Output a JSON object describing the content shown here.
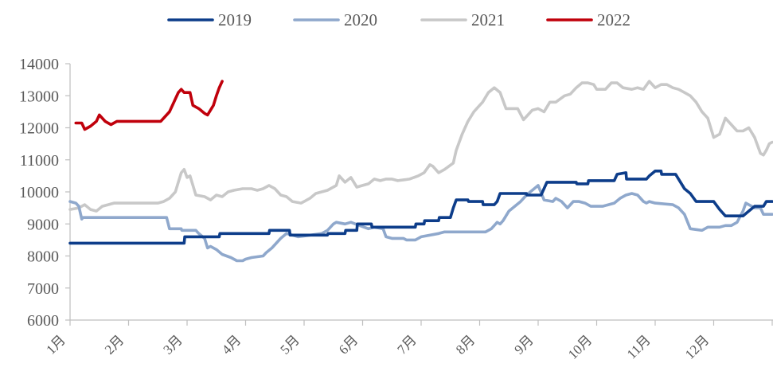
{
  "chart_data": {
    "type": "line",
    "title": "",
    "xlabel": "",
    "ylabel": "",
    "ylim": [
      6000,
      14000
    ],
    "yticks": [
      6000,
      7000,
      8000,
      9000,
      10000,
      11000,
      12000,
      13000,
      14000
    ],
    "xlim": [
      0,
      12
    ],
    "x_tick_labels": [
      "1月",
      "2月",
      "3月",
      "4月",
      "5月",
      "6月",
      "7月",
      "8月",
      "9月",
      "10月",
      "11月",
      "12月"
    ],
    "grid": false,
    "legend_position": "top-center",
    "series": [
      {
        "name": "2019",
        "color": "#0d3d8a",
        "points": [
          [
            0,
            8400
          ],
          [
            1.95,
            8400
          ],
          [
            1.96,
            8600
          ],
          [
            2.55,
            8600
          ],
          [
            2.56,
            8700
          ],
          [
            3.4,
            8700
          ],
          [
            3.41,
            8800
          ],
          [
            3.75,
            8800
          ],
          [
            3.76,
            8650
          ],
          [
            4.4,
            8650
          ],
          [
            4.41,
            8700
          ],
          [
            4.7,
            8700
          ],
          [
            4.71,
            8800
          ],
          [
            4.9,
            8800
          ],
          [
            4.91,
            9000
          ],
          [
            5.15,
            9000
          ],
          [
            5.16,
            8900
          ],
          [
            5.9,
            8900
          ],
          [
            5.91,
            9000
          ],
          [
            6.05,
            9000
          ],
          [
            6.06,
            9100
          ],
          [
            6.3,
            9100
          ],
          [
            6.31,
            9200
          ],
          [
            6.5,
            9200
          ],
          [
            6.55,
            9500
          ],
          [
            6.6,
            9750
          ],
          [
            6.8,
            9750
          ],
          [
            6.81,
            9700
          ],
          [
            7.05,
            9700
          ],
          [
            7.06,
            9600
          ],
          [
            7.25,
            9600
          ],
          [
            7.3,
            9700
          ],
          [
            7.35,
            9950
          ],
          [
            7.8,
            9950
          ],
          [
            7.81,
            9900
          ],
          [
            8.05,
            9900
          ],
          [
            8.15,
            10300
          ],
          [
            8.65,
            10300
          ],
          [
            8.66,
            10250
          ],
          [
            8.85,
            10250
          ],
          [
            8.86,
            10350
          ],
          [
            9.3,
            10350
          ],
          [
            9.35,
            10550
          ],
          [
            9.5,
            10600
          ],
          [
            9.51,
            10400
          ],
          [
            9.85,
            10400
          ],
          [
            9.9,
            10500
          ],
          [
            10.0,
            10650
          ],
          [
            10.1,
            10650
          ],
          [
            10.11,
            10550
          ],
          [
            10.35,
            10550
          ],
          [
            10.5,
            10100
          ],
          [
            10.6,
            9950
          ],
          [
            10.7,
            9700
          ],
          [
            11.0,
            9700
          ],
          [
            11.1,
            9450
          ],
          [
            11.2,
            9250
          ],
          [
            11.5,
            9250
          ],
          [
            11.6,
            9400
          ],
          [
            11.7,
            9550
          ],
          [
            11.85,
            9550
          ],
          [
            11.9,
            9700
          ],
          [
            12,
            9700
          ]
        ]
      },
      {
        "name": "2020",
        "color": "#8fa8cc",
        "points": [
          [
            0,
            9700
          ],
          [
            0.1,
            9650
          ],
          [
            0.15,
            9550
          ],
          [
            0.2,
            9150
          ],
          [
            0.22,
            9200
          ],
          [
            1.65,
            9200
          ],
          [
            1.7,
            8850
          ],
          [
            1.9,
            8850
          ],
          [
            1.91,
            8800
          ],
          [
            2.15,
            8800
          ],
          [
            2.2,
            8700
          ],
          [
            2.3,
            8550
          ],
          [
            2.35,
            8250
          ],
          [
            2.4,
            8300
          ],
          [
            2.5,
            8200
          ],
          [
            2.6,
            8050
          ],
          [
            2.75,
            7950
          ],
          [
            2.85,
            7850
          ],
          [
            2.95,
            7850
          ],
          [
            3.0,
            7900
          ],
          [
            3.1,
            7950
          ],
          [
            3.3,
            8000
          ],
          [
            3.35,
            8100
          ],
          [
            3.45,
            8250
          ],
          [
            3.6,
            8550
          ],
          [
            3.7,
            8700
          ],
          [
            3.8,
            8650
          ],
          [
            3.9,
            8600
          ],
          [
            4.3,
            8700
          ],
          [
            4.4,
            8800
          ],
          [
            4.5,
            9000
          ],
          [
            4.55,
            9050
          ],
          [
            4.7,
            9000
          ],
          [
            4.8,
            9050
          ],
          [
            4.95,
            8950
          ],
          [
            5.1,
            8850
          ],
          [
            5.2,
            8900
          ],
          [
            5.35,
            8850
          ],
          [
            5.4,
            8600
          ],
          [
            5.5,
            8550
          ],
          [
            5.7,
            8550
          ],
          [
            5.75,
            8500
          ],
          [
            5.9,
            8500
          ],
          [
            6.0,
            8600
          ],
          [
            6.3,
            8700
          ],
          [
            6.4,
            8750
          ],
          [
            7.1,
            8750
          ],
          [
            7.2,
            8850
          ],
          [
            7.3,
            9050
          ],
          [
            7.35,
            9000
          ],
          [
            7.4,
            9100
          ],
          [
            7.5,
            9400
          ],
          [
            7.7,
            9700
          ],
          [
            7.8,
            9900
          ],
          [
            8.0,
            10200
          ],
          [
            8.1,
            9750
          ],
          [
            8.25,
            9700
          ],
          [
            8.3,
            9800
          ],
          [
            8.4,
            9700
          ],
          [
            8.5,
            9500
          ],
          [
            8.6,
            9700
          ],
          [
            8.7,
            9700
          ],
          [
            8.8,
            9650
          ],
          [
            8.9,
            9550
          ],
          [
            9.1,
            9550
          ],
          [
            9.3,
            9650
          ],
          [
            9.4,
            9800
          ],
          [
            9.5,
            9900
          ],
          [
            9.6,
            9950
          ],
          [
            9.7,
            9900
          ],
          [
            9.8,
            9700
          ],
          [
            9.85,
            9650
          ],
          [
            9.9,
            9700
          ],
          [
            10.0,
            9650
          ],
          [
            10.3,
            9600
          ],
          [
            10.4,
            9500
          ],
          [
            10.5,
            9300
          ],
          [
            10.6,
            8850
          ],
          [
            10.8,
            8800
          ],
          [
            10.9,
            8900
          ],
          [
            11.1,
            8900
          ],
          [
            11.2,
            8950
          ],
          [
            11.3,
            8950
          ],
          [
            11.4,
            9050
          ],
          [
            11.5,
            9400
          ],
          [
            11.55,
            9650
          ],
          [
            11.65,
            9550
          ],
          [
            11.7,
            9500
          ],
          [
            11.8,
            9500
          ],
          [
            11.85,
            9300
          ],
          [
            12,
            9300
          ]
        ]
      },
      {
        "name": "2021",
        "color": "#c8c8c8",
        "points": [
          [
            0,
            9450
          ],
          [
            0.15,
            9500
          ],
          [
            0.25,
            9600
          ],
          [
            0.35,
            9450
          ],
          [
            0.45,
            9400
          ],
          [
            0.55,
            9550
          ],
          [
            0.65,
            9600
          ],
          [
            0.75,
            9650
          ],
          [
            1.0,
            9650
          ],
          [
            1.3,
            9650
          ],
          [
            1.5,
            9650
          ],
          [
            1.6,
            9700
          ],
          [
            1.7,
            9800
          ],
          [
            1.8,
            10000
          ],
          [
            1.85,
            10300
          ],
          [
            1.9,
            10600
          ],
          [
            1.95,
            10700
          ],
          [
            2.0,
            10450
          ],
          [
            2.05,
            10500
          ],
          [
            2.15,
            9900
          ],
          [
            2.3,
            9850
          ],
          [
            2.4,
            9750
          ],
          [
            2.5,
            9900
          ],
          [
            2.6,
            9850
          ],
          [
            2.7,
            10000
          ],
          [
            2.8,
            10050
          ],
          [
            2.95,
            10100
          ],
          [
            3.1,
            10100
          ],
          [
            3.2,
            10050
          ],
          [
            3.3,
            10100
          ],
          [
            3.4,
            10200
          ],
          [
            3.5,
            10100
          ],
          [
            3.6,
            9900
          ],
          [
            3.7,
            9850
          ],
          [
            3.8,
            9700
          ],
          [
            3.95,
            9650
          ],
          [
            4.1,
            9800
          ],
          [
            4.2,
            9950
          ],
          [
            4.4,
            10050
          ],
          [
            4.55,
            10200
          ],
          [
            4.6,
            10500
          ],
          [
            4.7,
            10300
          ],
          [
            4.8,
            10450
          ],
          [
            4.9,
            10150
          ],
          [
            5.0,
            10200
          ],
          [
            5.1,
            10250
          ],
          [
            5.2,
            10400
          ],
          [
            5.3,
            10350
          ],
          [
            5.4,
            10400
          ],
          [
            5.5,
            10400
          ],
          [
            5.6,
            10350
          ],
          [
            5.8,
            10400
          ],
          [
            5.95,
            10500
          ],
          [
            6.05,
            10600
          ],
          [
            6.15,
            10850
          ],
          [
            6.2,
            10800
          ],
          [
            6.3,
            10600
          ],
          [
            6.4,
            10700
          ],
          [
            6.55,
            10900
          ],
          [
            6.6,
            11300
          ],
          [
            6.7,
            11800
          ],
          [
            6.8,
            12200
          ],
          [
            6.9,
            12500
          ],
          [
            7.0,
            12700
          ],
          [
            7.05,
            12800
          ],
          [
            7.15,
            13100
          ],
          [
            7.25,
            13250
          ],
          [
            7.35,
            13100
          ],
          [
            7.45,
            12600
          ],
          [
            7.65,
            12600
          ],
          [
            7.75,
            12250
          ],
          [
            7.9,
            12550
          ],
          [
            8.0,
            12600
          ],
          [
            8.1,
            12500
          ],
          [
            8.2,
            12800
          ],
          [
            8.3,
            12800
          ],
          [
            8.45,
            13000
          ],
          [
            8.55,
            13050
          ],
          [
            8.65,
            13250
          ],
          [
            8.75,
            13400
          ],
          [
            8.85,
            13400
          ],
          [
            8.95,
            13350
          ],
          [
            9.0,
            13200
          ],
          [
            9.15,
            13200
          ],
          [
            9.25,
            13400
          ],
          [
            9.35,
            13400
          ],
          [
            9.45,
            13250
          ],
          [
            9.6,
            13200
          ],
          [
            9.7,
            13250
          ],
          [
            9.8,
            13200
          ],
          [
            9.9,
            13450
          ],
          [
            10.0,
            13250
          ],
          [
            10.1,
            13350
          ],
          [
            10.2,
            13350
          ],
          [
            10.3,
            13250
          ],
          [
            10.4,
            13200
          ],
          [
            10.5,
            13100
          ],
          [
            10.6,
            13000
          ],
          [
            10.7,
            12800
          ],
          [
            10.8,
            12500
          ],
          [
            10.9,
            12300
          ],
          [
            11.0,
            11700
          ],
          [
            11.1,
            11800
          ],
          [
            11.2,
            12300
          ],
          [
            11.3,
            12100
          ],
          [
            11.4,
            11900
          ],
          [
            11.5,
            11900
          ],
          [
            11.6,
            12000
          ],
          [
            11.7,
            11700
          ],
          [
            11.8,
            11200
          ],
          [
            11.85,
            11150
          ],
          [
            11.9,
            11300
          ],
          [
            11.95,
            11500
          ],
          [
            12,
            11550
          ]
        ]
      },
      {
        "name": "2022",
        "color": "#c0000b",
        "points": [
          [
            0.1,
            12150
          ],
          [
            0.2,
            12150
          ],
          [
            0.25,
            11950
          ],
          [
            0.35,
            12050
          ],
          [
            0.45,
            12200
          ],
          [
            0.5,
            12400
          ],
          [
            0.6,
            12200
          ],
          [
            0.7,
            12100
          ],
          [
            0.8,
            12200
          ],
          [
            0.9,
            12200
          ],
          [
            1.55,
            12200
          ],
          [
            1.6,
            12300
          ],
          [
            1.7,
            12500
          ],
          [
            1.8,
            12900
          ],
          [
            1.85,
            13100
          ],
          [
            1.9,
            13200
          ],
          [
            1.95,
            13100
          ],
          [
            2.05,
            13100
          ],
          [
            2.1,
            12700
          ],
          [
            2.2,
            12600
          ],
          [
            2.3,
            12450
          ],
          [
            2.35,
            12400
          ],
          [
            2.45,
            12700
          ],
          [
            2.5,
            13000
          ],
          [
            2.55,
            13250
          ],
          [
            2.6,
            13450
          ]
        ]
      }
    ]
  }
}
